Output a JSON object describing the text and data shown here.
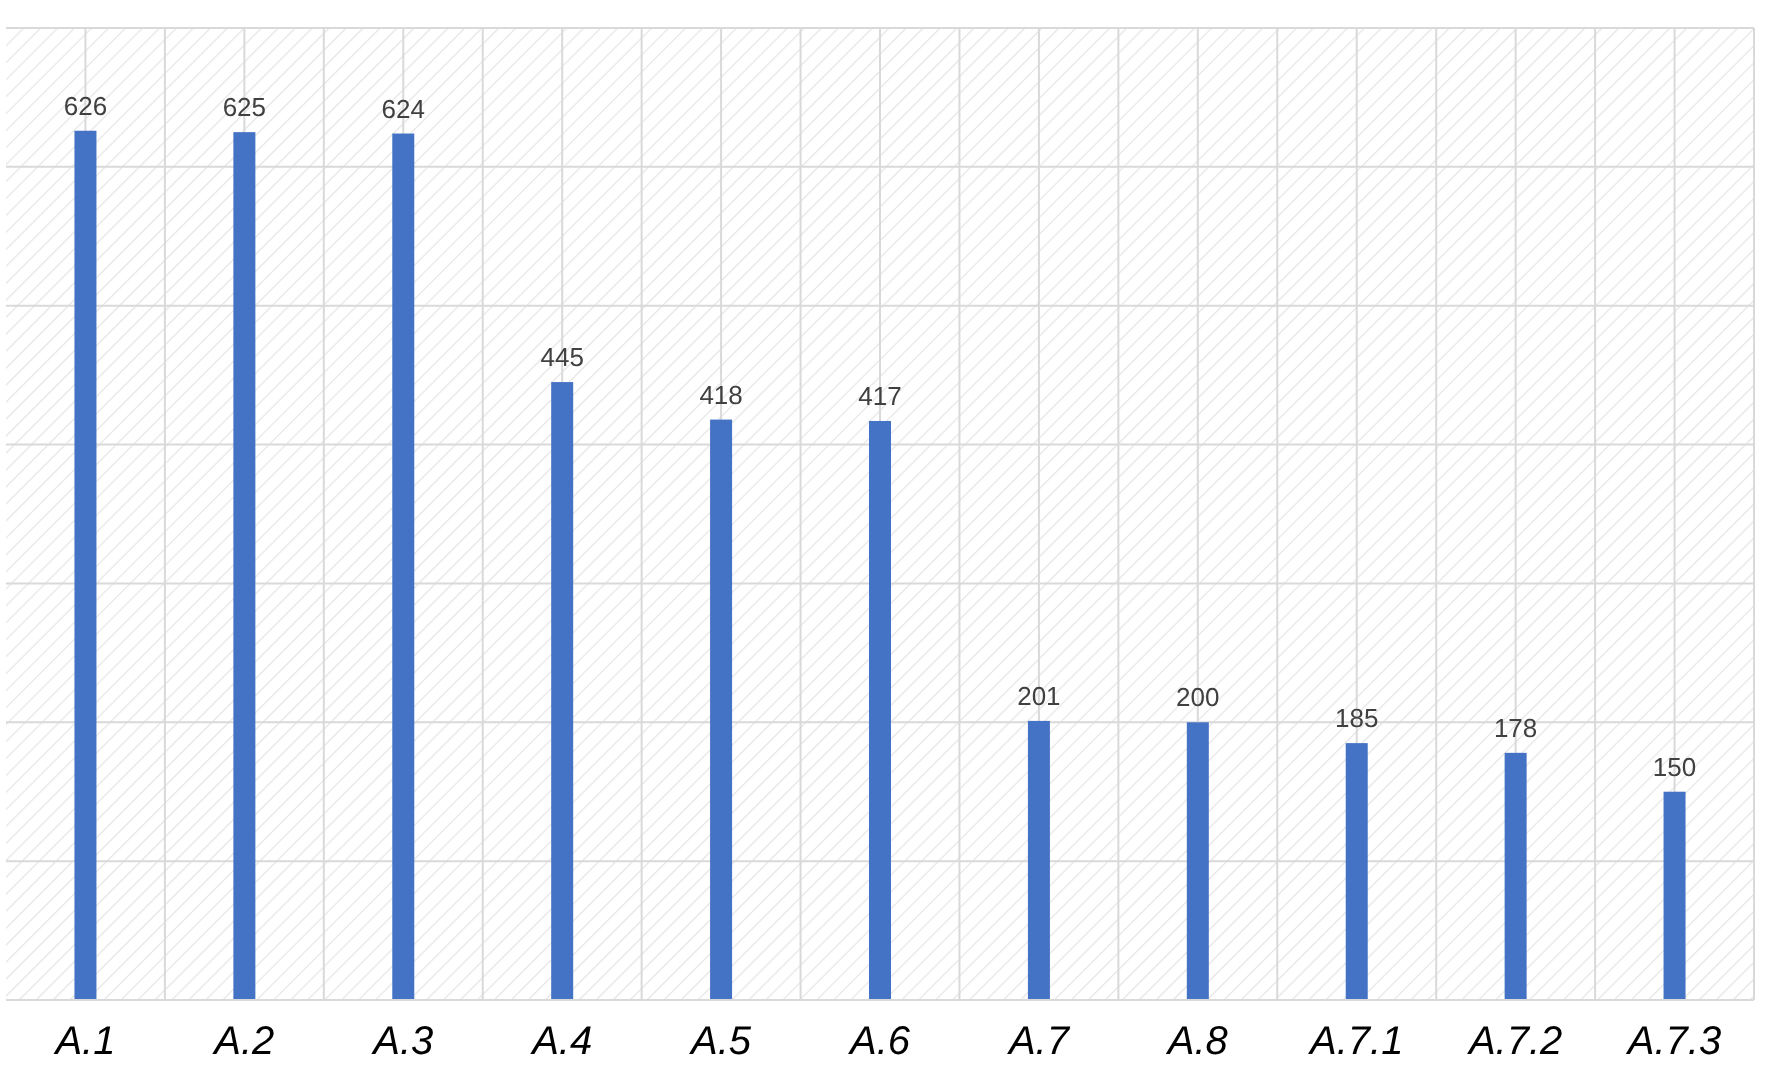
{
  "chart_data": {
    "type": "bar",
    "categories": [
      "A.1",
      "A.2",
      "A.3",
      "A.4",
      "A.5",
      "A.6",
      "A.7",
      "A.8",
      "A.7.1",
      "A.7.2",
      "A.7.3"
    ],
    "values": [
      626,
      625,
      624,
      445,
      418,
      417,
      201,
      200,
      185,
      178,
      150
    ],
    "color": "#4472c4",
    "ylim": [
      0,
      700
    ],
    "yticks": [
      {
        "value": 0,
        "label": null
      },
      {
        "value": 100,
        "label": null
      },
      {
        "value": 200,
        "label": null
      },
      {
        "value": 300,
        "label": null
      },
      {
        "value": 400,
        "label": null
      },
      {
        "value": 500,
        "label": null
      },
      {
        "value": 600,
        "label": null
      },
      {
        "value": 700,
        "label": null
      }
    ],
    "grid": true,
    "tick_labels": "x",
    "data_labels": true
  }
}
